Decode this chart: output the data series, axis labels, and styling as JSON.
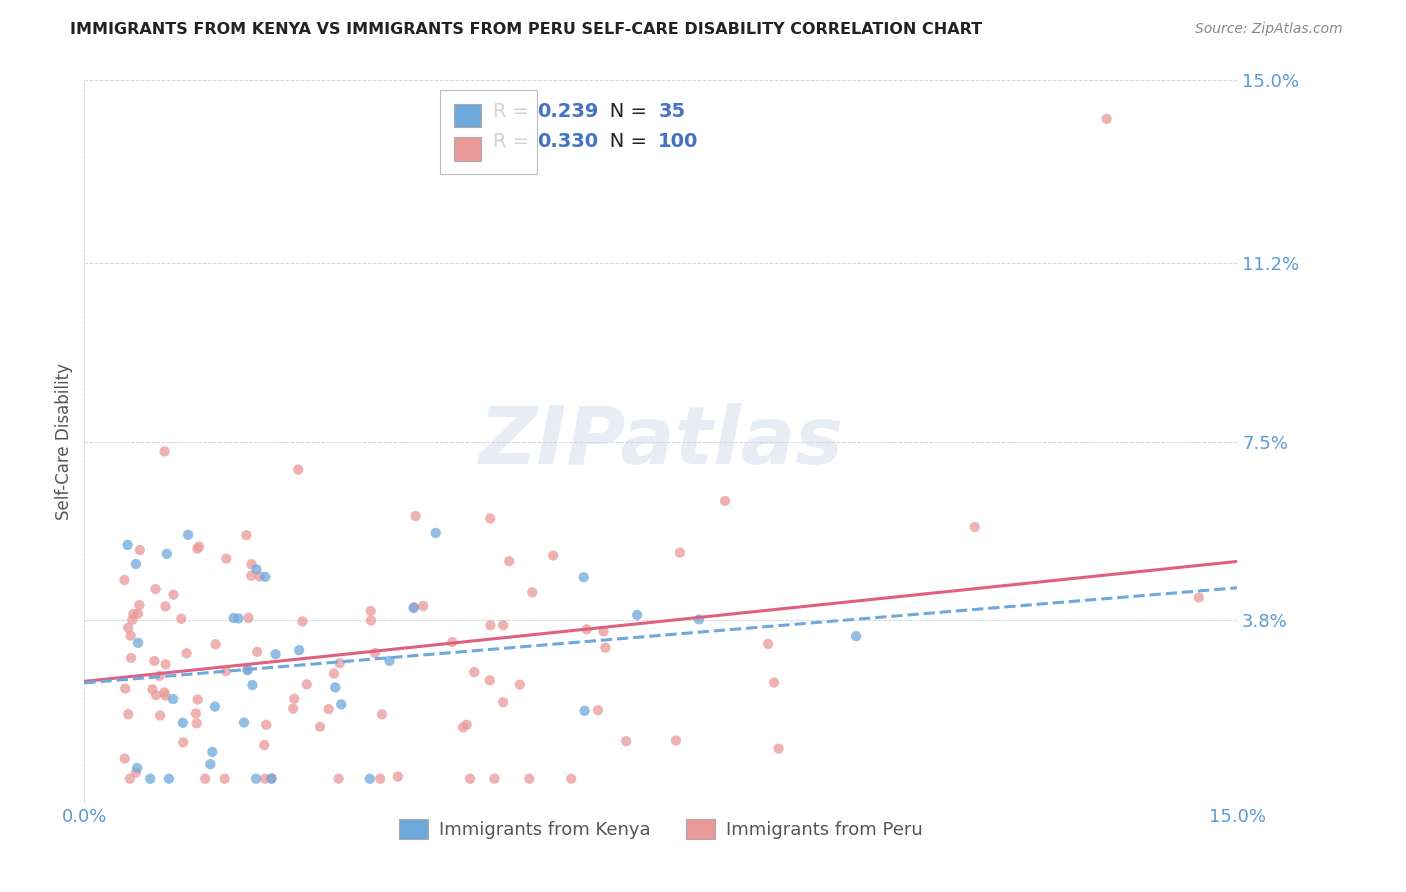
{
  "title": "IMMIGRANTS FROM KENYA VS IMMIGRANTS FROM PERU SELF-CARE DISABILITY CORRELATION CHART",
  "source": "Source: ZipAtlas.com",
  "ylabel": "Self-Care Disability",
  "xlim": [
    0.0,
    0.15
  ],
  "ylim": [
    0.0,
    0.15
  ],
  "ytick_positions": [
    0.0,
    0.038,
    0.075,
    0.112,
    0.15
  ],
  "ytick_labels": [
    "",
    "3.8%",
    "7.5%",
    "11.2%",
    "15.0%"
  ],
  "xtick_positions": [
    0.0,
    0.15
  ],
  "xtick_labels": [
    "0.0%",
    "15.0%"
  ],
  "kenya_color": "#6fa8dc",
  "kenya_line_color": "#6fa8dc",
  "peru_color": "#ea9999",
  "peru_line_color": "#e06080",
  "kenya_R": 0.239,
  "kenya_N": 35,
  "peru_R": 0.33,
  "peru_N": 100,
  "legend_kenya": "Immigrants from Kenya",
  "legend_peru": "Immigrants from Peru",
  "title_color": "#222222",
  "axis_label_color": "#555555",
  "tick_label_color": "#5b9bd5",
  "grid_color": "#cccccc",
  "watermark": "ZIPatlas",
  "kenya_line_start_y": 0.026,
  "kenya_line_end_y": 0.046,
  "peru_line_start_y": 0.023,
  "peru_line_end_y": 0.055
}
